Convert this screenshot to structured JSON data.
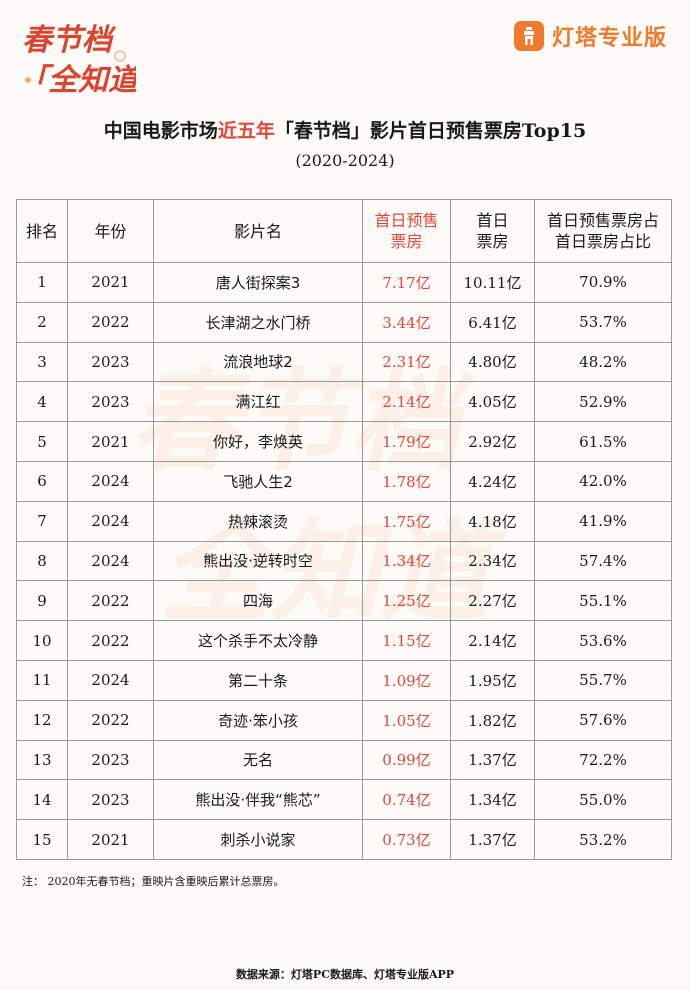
{
  "logo": {
    "left_lines": [
      "春节档",
      "「全知道」"
    ],
    "right_text": "灯塔专业版"
  },
  "header": {
    "title_pre": "中国电影市场",
    "title_highlight": "近五年",
    "title_post": "「春节档」影片首日预售票房Top15",
    "subtitle": "(2020-2024)"
  },
  "table": {
    "columns": [
      "排名",
      "年份",
      "影片名",
      "首日预售票房",
      "首日票房",
      "首日预售票房占首日票房占比"
    ],
    "rows": [
      {
        "rank": "1",
        "year": "2021",
        "film": "唐人街探案3",
        "presale": "7.17亿",
        "first_day": "10.11亿",
        "ratio": "70.9%"
      },
      {
        "rank": "2",
        "year": "2022",
        "film": "长津湖之水门桥",
        "presale": "3.44亿",
        "first_day": "6.41亿",
        "ratio": "53.7%"
      },
      {
        "rank": "3",
        "year": "2023",
        "film": "流浪地球2",
        "presale": "2.31亿",
        "first_day": "4.80亿",
        "ratio": "48.2%"
      },
      {
        "rank": "4",
        "year": "2023",
        "film": "满江红",
        "presale": "2.14亿",
        "first_day": "4.05亿",
        "ratio": "52.9%"
      },
      {
        "rank": "5",
        "year": "2021",
        "film": "你好，李焕英",
        "presale": "1.79亿",
        "first_day": "2.92亿",
        "ratio": "61.5%"
      },
      {
        "rank": "6",
        "year": "2024",
        "film": "飞驰人生2",
        "presale": "1.78亿",
        "first_day": "4.24亿",
        "ratio": "42.0%"
      },
      {
        "rank": "7",
        "year": "2024",
        "film": "热辣滚烫",
        "presale": "1.75亿",
        "first_day": "4.18亿",
        "ratio": "41.9%"
      },
      {
        "rank": "8",
        "year": "2024",
        "film": "熊出没·逆转时空",
        "presale": "1.34亿",
        "first_day": "2.34亿",
        "ratio": "57.4%"
      },
      {
        "rank": "9",
        "year": "2022",
        "film": "四海",
        "presale": "1.25亿",
        "first_day": "2.27亿",
        "ratio": "55.1%"
      },
      {
        "rank": "10",
        "year": "2022",
        "film": "这个杀手不太冷静",
        "presale": "1.15亿",
        "first_day": "2.14亿",
        "ratio": "53.6%"
      },
      {
        "rank": "11",
        "year": "2024",
        "film": "第二十条",
        "presale": "1.09亿",
        "first_day": "1.95亿",
        "ratio": "55.7%"
      },
      {
        "rank": "12",
        "year": "2022",
        "film": "奇迹·笨小孩",
        "presale": "1.05亿",
        "first_day": "1.82亿",
        "ratio": "57.6%"
      },
      {
        "rank": "13",
        "year": "2023",
        "film": "无名",
        "presale": "0.99亿",
        "first_day": "1.37亿",
        "ratio": "72.2%"
      },
      {
        "rank": "14",
        "year": "2023",
        "film": "熊出没·伴我“熊芯”",
        "presale": "0.74亿",
        "first_day": "1.34亿",
        "ratio": "55.0%"
      },
      {
        "rank": "15",
        "year": "2021",
        "film": "刺杀小说家",
        "presale": "0.73亿",
        "first_day": "1.37亿",
        "ratio": "53.2%"
      }
    ]
  },
  "footer": {
    "note": "注：  2020年无春节档；重映片含重映后累计总票房。",
    "source": "数据来源：灯塔PC数据库、灯塔专业版APP"
  },
  "colors": {
    "accent": "#e0473a",
    "brand": "#f07b2c"
  }
}
